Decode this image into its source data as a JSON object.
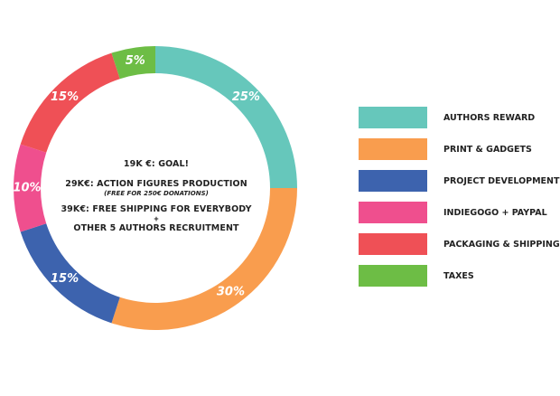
{
  "chart_data": {
    "type": "pie",
    "style": "donut",
    "categories": [
      "AUTHORS REWARD",
      "PRINT & GADGETS",
      "PROJECT DEVELOPMENT",
      "INDIEGOGO + PAYPAL",
      "PACKAGING & SHIPPING",
      "TAXES"
    ],
    "values": [
      25,
      30,
      15,
      10,
      15,
      5
    ],
    "value_labels": [
      "25%",
      "30%",
      "15%",
      "10%",
      "15%",
      "5%"
    ],
    "colors": [
      "#66c7bb",
      "#f99d4e",
      "#3d63ae",
      "#ef4f8e",
      "#ef5056",
      "#6dbd45"
    ],
    "legend_position": "right"
  },
  "center": {
    "line1": "19K €: GOAL!",
    "line2": "29K€: ACTION FIGURES PRODUCTION",
    "line2_note": "(FREE FOR 250€ DONATIONS)",
    "line3": "39K€: FREE SHIPPING FOR EVERYBODY",
    "plus": "+",
    "line4": "OTHER 5 AUTHORS RECRUITMENT"
  }
}
